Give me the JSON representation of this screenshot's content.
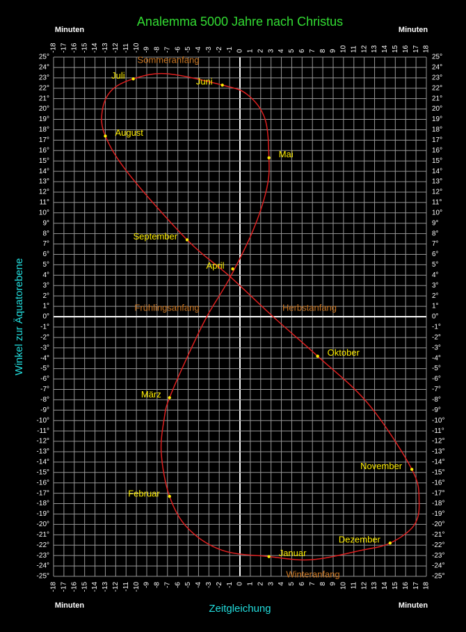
{
  "chart_data": {
    "type": "analemma",
    "title": "Analemma  5000 Jahre nach Christus",
    "x_label": "Zeitgleichung",
    "y_label": "Winkel zur Äquatorebene",
    "x_unit": "Minuten",
    "xlim": [
      -18,
      18
    ],
    "ylim": [
      -25,
      25
    ],
    "xticks": [
      -18,
      -17,
      -16,
      -15,
      -14,
      -13,
      -12,
      -11,
      -10,
      -9,
      -8,
      -7,
      -6,
      -5,
      -4,
      -3,
      -2,
      -1,
      0,
      1,
      2,
      3,
      4,
      5,
      6,
      7,
      8,
      9,
      10,
      11,
      12,
      13,
      14,
      15,
      16,
      17,
      18
    ],
    "yticks": [
      {
        "value": 25,
        "label": "25°"
      },
      {
        "value": 24,
        "label": "24°"
      },
      {
        "value": 23,
        "label": "23°"
      },
      {
        "value": 22,
        "label": "22°"
      },
      {
        "value": 21,
        "label": "21°"
      },
      {
        "value": 20,
        "label": "20°"
      },
      {
        "value": 19,
        "label": "19°"
      },
      {
        "value": 18,
        "label": "18°"
      },
      {
        "value": 17,
        "label": "17°"
      },
      {
        "value": 16,
        "label": "16°"
      },
      {
        "value": 15,
        "label": "15°"
      },
      {
        "value": 14,
        "label": "14°"
      },
      {
        "value": 13,
        "label": "13°"
      },
      {
        "value": 12,
        "label": "12°"
      },
      {
        "value": 11,
        "label": "11°"
      },
      {
        "value": 10,
        "label": "10°"
      },
      {
        "value": 9,
        "label": "9°"
      },
      {
        "value": 8,
        "label": "8°"
      },
      {
        "value": 7,
        "label": "7°"
      },
      {
        "value": 6,
        "label": "6°"
      },
      {
        "value": 5,
        "label": "5°"
      },
      {
        "value": 4,
        "label": "4°"
      },
      {
        "value": 3,
        "label": "3°"
      },
      {
        "value": 2,
        "label": "2°"
      },
      {
        "value": 1,
        "label": "1°"
      },
      {
        "value": 0,
        "label": "0°"
      },
      {
        "value": -1,
        "label": "-1°"
      },
      {
        "value": -2,
        "label": "-2°"
      },
      {
        "value": -3,
        "label": "-3°"
      },
      {
        "value": -4,
        "label": "-4°"
      },
      {
        "value": -5,
        "label": "-5°"
      },
      {
        "value": -6,
        "label": "-6°"
      },
      {
        "value": -7,
        "label": "-7°"
      },
      {
        "value": -8,
        "label": "-8°"
      },
      {
        "value": -9,
        "label": "-9°"
      },
      {
        "value": -10,
        "label": "-10°"
      },
      {
        "value": -11,
        "label": "-11°"
      },
      {
        "value": -12,
        "label": "-12°"
      },
      {
        "value": -13,
        "label": "-13°"
      },
      {
        "value": -14,
        "label": "-14°"
      },
      {
        "value": -15,
        "label": "-15°"
      },
      {
        "value": -16,
        "label": "-16°"
      },
      {
        "value": -17,
        "label": "-17°"
      },
      {
        "value": -18,
        "label": "-18°"
      },
      {
        "value": -19,
        "label": "-19°"
      },
      {
        "value": -20,
        "label": "-20°"
      },
      {
        "value": -21,
        "label": "-21°"
      },
      {
        "value": -22,
        "label": "-22°"
      },
      {
        "value": -23,
        "label": "-23°"
      },
      {
        "value": -24,
        "label": "-24°"
      },
      {
        "value": -25,
        "label": "-25°"
      }
    ],
    "grid": true,
    "curve": {
      "color": "#e02020",
      "x": [
        14.5,
        11.7,
        6.9,
        2.8,
        -1.7,
        -5.0,
        -6.8,
        -7.6,
        -7.3,
        -6.8,
        -5.0,
        -3.2,
        -1.0,
        1.3,
        2.6,
        2.8,
        2.4,
        0.7,
        -1.7,
        -7.1,
        -10.3,
        -12.4,
        -13.3,
        -13.0,
        -10.7,
        -5.1,
        -1.0,
        3.2,
        7.5,
        12.4,
        16.6,
        17.3,
        16.8
      ],
      "y": [
        -21.8,
        -22.5,
        -23.4,
        -23.1,
        -22.5,
        -20.4,
        -17.3,
        -13.1,
        -9.7,
        -7.8,
        -3.7,
        0,
        3.7,
        8.4,
        12.4,
        15.3,
        19.1,
        21.4,
        22.3,
        23.4,
        22.9,
        21.8,
        19.8,
        17.4,
        13.7,
        7.4,
        3.9,
        0,
        -3.8,
        -8.4,
        -14.7,
        -17.8,
        -20.1
      ]
    },
    "months": {
      "color": "#ffee00",
      "names": [
        "Januar",
        "Februar",
        "März",
        "April",
        "Mai",
        "Juni",
        "Juli",
        "August",
        "September",
        "Oktober",
        "November",
        "Dezember"
      ],
      "x": [
        2.8,
        -6.8,
        -6.8,
        -0.7,
        2.8,
        -1.7,
        -10.3,
        -13.0,
        -5.1,
        7.5,
        16.6,
        14.5
      ],
      "y": [
        -23.1,
        -17.3,
        -7.8,
        4.6,
        15.3,
        22.3,
        22.9,
        17.4,
        7.4,
        -3.8,
        -14.7,
        -21.8
      ]
    },
    "annotations": [
      "Sommeranfang",
      "Frühlingsanfang",
      "Herbstanfang",
      "Winteranfang"
    ]
  }
}
